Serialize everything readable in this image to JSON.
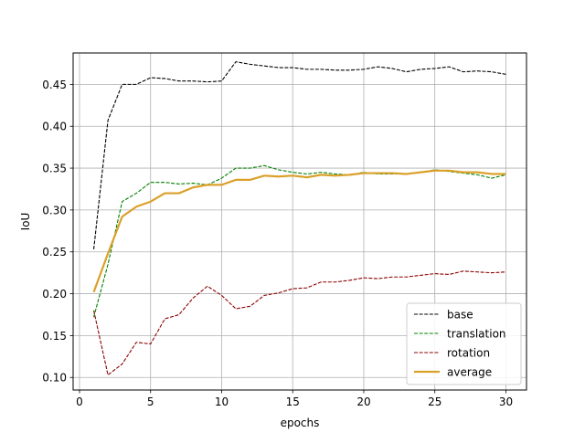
{
  "chart_data": {
    "type": "line",
    "title": "",
    "xlabel": "epochs",
    "ylabel": "IoU",
    "xlim": [
      -0.45,
      31.45
    ],
    "ylim": [
      0.085,
      0.4875
    ],
    "xticks": [
      0,
      5,
      10,
      15,
      20,
      25,
      30
    ],
    "yticks": [
      0.1,
      0.15,
      0.2,
      0.25,
      0.3,
      0.35,
      0.4,
      0.45
    ],
    "grid": true,
    "legend_position": "lower right",
    "x": [
      1,
      2,
      3,
      4,
      5,
      6,
      7,
      8,
      9,
      10,
      11,
      12,
      13,
      14,
      15,
      16,
      17,
      18,
      19,
      20,
      21,
      22,
      23,
      24,
      25,
      26,
      27,
      28,
      29,
      30
    ],
    "series": [
      {
        "name": "base",
        "color": "#000000",
        "style": "dashed",
        "values": [
          0.253,
          0.407,
          0.45,
          0.45,
          0.458,
          0.457,
          0.454,
          0.454,
          0.453,
          0.454,
          0.477,
          0.474,
          0.472,
          0.47,
          0.47,
          0.468,
          0.468,
          0.467,
          0.467,
          0.468,
          0.471,
          0.469,
          0.465,
          0.468,
          0.469,
          0.471,
          0.465,
          0.466,
          0.465,
          0.462
        ]
      },
      {
        "name": "translation",
        "color": "#008000",
        "style": "dashed",
        "values": [
          0.172,
          0.235,
          0.31,
          0.32,
          0.333,
          0.333,
          0.331,
          0.332,
          0.33,
          0.338,
          0.35,
          0.35,
          0.353,
          0.348,
          0.345,
          0.343,
          0.345,
          0.343,
          0.342,
          0.345,
          0.343,
          0.343,
          0.343,
          0.345,
          0.348,
          0.346,
          0.344,
          0.342,
          0.338,
          0.342
        ]
      },
      {
        "name": "rotation",
        "color": "#8b0000",
        "style": "dashed",
        "values": [
          0.18,
          0.103,
          0.116,
          0.142,
          0.14,
          0.17,
          0.175,
          0.195,
          0.209,
          0.198,
          0.182,
          0.185,
          0.198,
          0.201,
          0.206,
          0.207,
          0.214,
          0.214,
          0.216,
          0.219,
          0.218,
          0.22,
          0.22,
          0.222,
          0.224,
          0.223,
          0.227,
          0.226,
          0.225,
          0.226
        ]
      },
      {
        "name": "average",
        "color": "#daa02a",
        "style": "solid",
        "values": [
          0.202,
          0.248,
          0.292,
          0.304,
          0.31,
          0.32,
          0.32,
          0.327,
          0.33,
          0.33,
          0.336,
          0.336,
          0.341,
          0.34,
          0.341,
          0.339,
          0.342,
          0.341,
          0.342,
          0.344,
          0.344,
          0.344,
          0.343,
          0.345,
          0.347,
          0.347,
          0.345,
          0.345,
          0.343,
          0.343
        ]
      }
    ]
  }
}
